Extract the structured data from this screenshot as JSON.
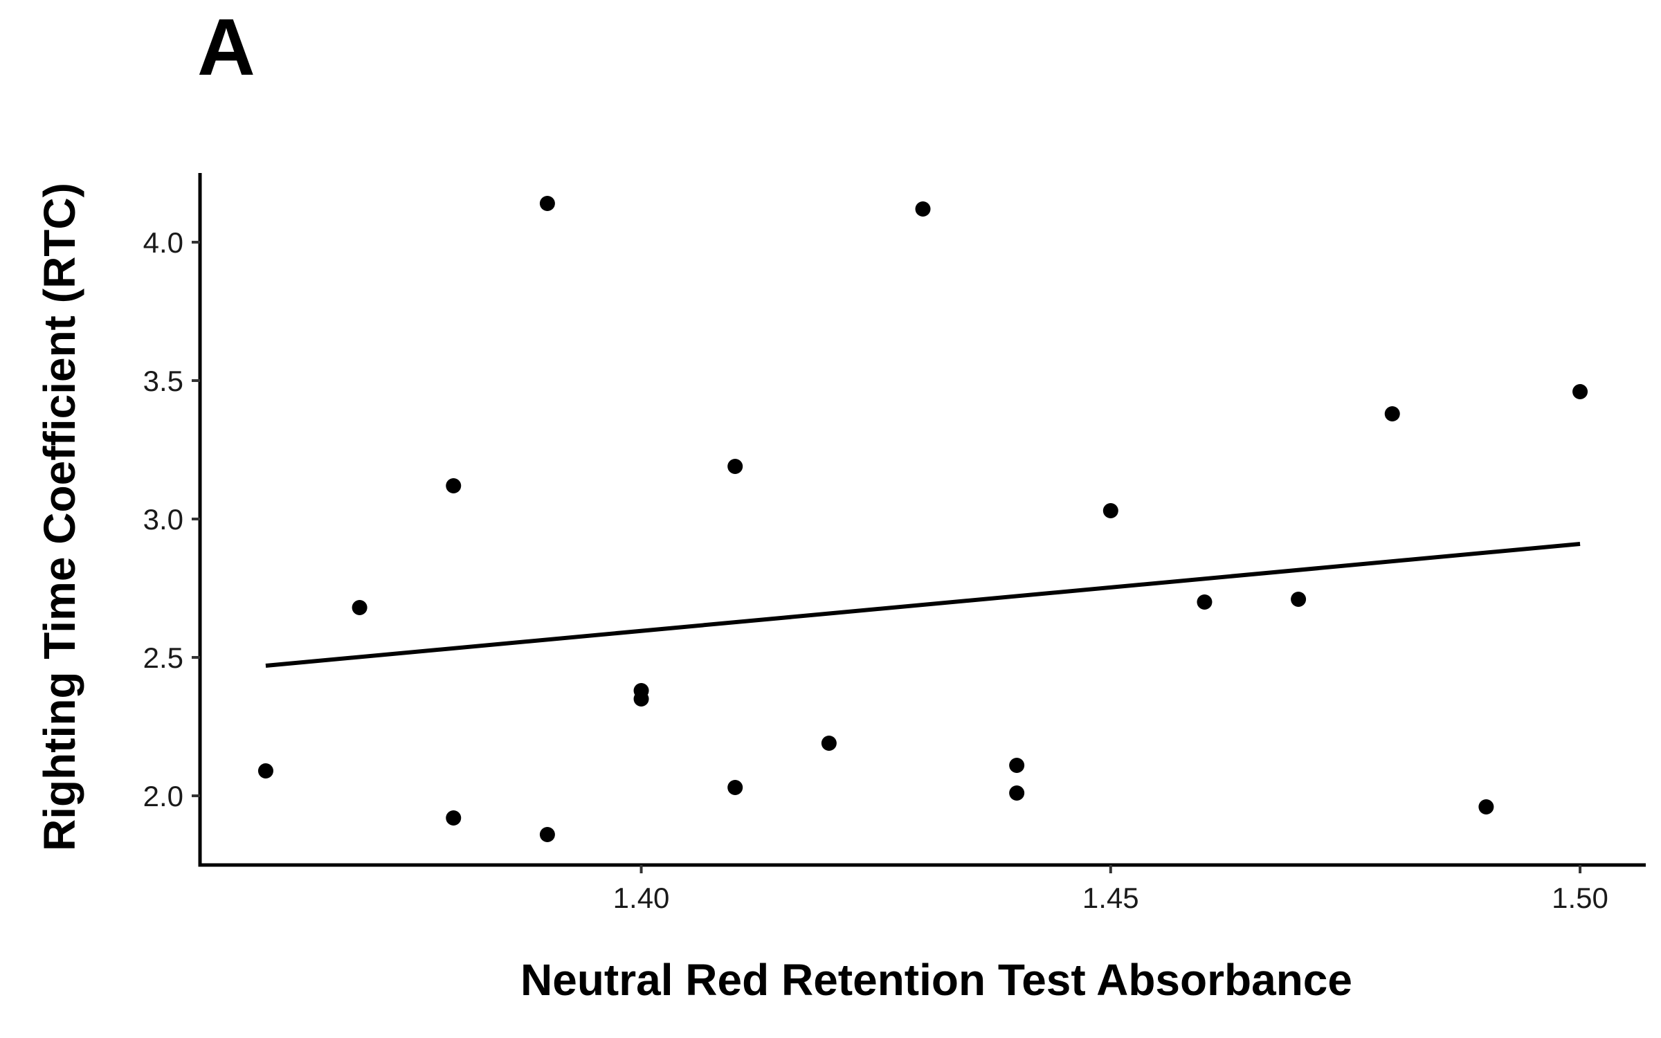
{
  "panel_label": "A",
  "chart_data": {
    "type": "scatter",
    "title": "",
    "xlabel": "Neutral Red Retention Test Absorbance",
    "ylabel": "Righting Time Coefficient (RTC)",
    "xlim": [
      1.353,
      1.507
    ],
    "ylim": [
      1.75,
      4.25
    ],
    "xticks": [
      {
        "value": 1.4,
        "label": "1.40"
      },
      {
        "value": 1.45,
        "label": "1.45"
      },
      {
        "value": 1.5,
        "label": "1.50"
      }
    ],
    "yticks": [
      {
        "value": 2.0,
        "label": "2.0"
      },
      {
        "value": 2.5,
        "label": "2.5"
      },
      {
        "value": 3.0,
        "label": "3.0"
      },
      {
        "value": 3.5,
        "label": "3.5"
      },
      {
        "value": 4.0,
        "label": "4.0"
      }
    ],
    "points": [
      {
        "x": 1.36,
        "y": 2.09
      },
      {
        "x": 1.37,
        "y": 2.68
      },
      {
        "x": 1.38,
        "y": 3.12
      },
      {
        "x": 1.38,
        "y": 1.92
      },
      {
        "x": 1.39,
        "y": 4.14
      },
      {
        "x": 1.39,
        "y": 1.86
      },
      {
        "x": 1.4,
        "y": 2.38
      },
      {
        "x": 1.4,
        "y": 2.35
      },
      {
        "x": 1.41,
        "y": 3.19
      },
      {
        "x": 1.41,
        "y": 2.03
      },
      {
        "x": 1.42,
        "y": 2.19
      },
      {
        "x": 1.43,
        "y": 4.12
      },
      {
        "x": 1.44,
        "y": 2.11
      },
      {
        "x": 1.44,
        "y": 2.01
      },
      {
        "x": 1.45,
        "y": 3.03
      },
      {
        "x": 1.46,
        "y": 2.7
      },
      {
        "x": 1.47,
        "y": 2.71
      },
      {
        "x": 1.48,
        "y": 3.38
      },
      {
        "x": 1.49,
        "y": 1.96
      },
      {
        "x": 1.5,
        "y": 3.46
      }
    ],
    "fit_line": {
      "type": "linear",
      "x": [
        1.36,
        1.5
      ],
      "y": [
        2.47,
        2.91
      ]
    },
    "grid": false,
    "legend": "none",
    "colors": {
      "points": "#000000",
      "line": "#000000",
      "axis": "#000000"
    }
  }
}
